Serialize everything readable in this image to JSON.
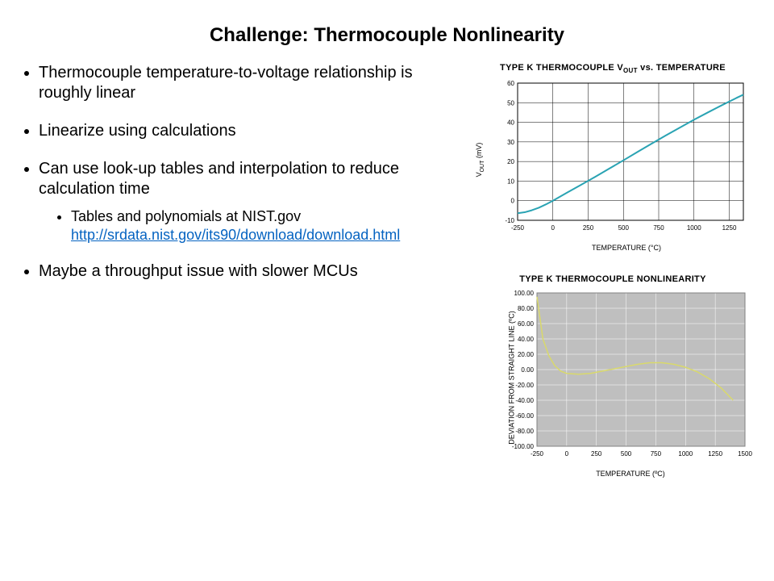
{
  "title": "Challenge: Thermocouple Nonlinearity",
  "bullets": {
    "b1": "Thermocouple temperature-to-voltage relationship is roughly linear",
    "b2": "Linearize using calculations",
    "b3": "Can use look-up tables and interpolation to reduce calculation time",
    "b3_sub1": "Tables and polynomials at NIST.gov",
    "b3_link": "http://srdata.nist.gov/its90/download/download.html",
    "b4": "Maybe a throughput issue with slower MCUs"
  },
  "chart1": {
    "type": "line",
    "title_pre": "TYPE K THERMOCOUPLE V",
    "title_sub": "OUT",
    "title_post": " vs. TEMPERATURE",
    "x_label": "TEMPERATURE (°C)",
    "y_label": "V_OUT (mV)",
    "y_label_pre": "V",
    "y_label_sub": "OUT",
    "y_label_post": " (mV)",
    "xlim": [
      -250,
      1350
    ],
    "ylim": [
      -10,
      60
    ],
    "x_ticks": [
      -250,
      0,
      250,
      500,
      750,
      1000,
      1250
    ],
    "y_ticks": [
      -10,
      0,
      10,
      20,
      30,
      40,
      50,
      60
    ],
    "line_color": "#2aa3b3",
    "line_width": 2,
    "grid_color": "#000000",
    "background_color": "#ffffff",
    "border_color": "#000000",
    "tick_fontsize": 8,
    "label_fontsize": 9,
    "data": {
      "x": [
        -250,
        -200,
        -150,
        -100,
        -50,
        0,
        100,
        200,
        300,
        400,
        500,
        600,
        700,
        800,
        900,
        1000,
        1100,
        1200,
        1300,
        1350
      ],
      "y": [
        -6.4,
        -5.9,
        -4.9,
        -3.6,
        -1.9,
        0,
        4.1,
        8.1,
        12.2,
        16.4,
        20.6,
        24.9,
        29.1,
        33.3,
        37.3,
        41.3,
        45.1,
        48.8,
        52.4,
        54.1
      ]
    }
  },
  "chart2": {
    "type": "line",
    "title": "TYPE K THERMOCOUPLE NONLINEARITY",
    "x_label": "TEMPERATURE (ºC)",
    "y_label": "DEVIATION FROM STRAIGHT LINE (ºC)",
    "xlim": [
      -250,
      1500
    ],
    "ylim": [
      -100,
      100
    ],
    "x_ticks": [
      -250,
      0,
      250,
      500,
      750,
      1000,
      1250,
      1500
    ],
    "y_ticks": [
      -100,
      -80,
      -60,
      -40,
      -20,
      0,
      20,
      40,
      60,
      80,
      100
    ],
    "y_tick_labels": [
      "-100.00",
      "-80.00",
      "-60.00",
      "-40.00",
      "-20.00",
      "0.00",
      "20.00",
      "40.00",
      "60.00",
      "80.00",
      "100.00"
    ],
    "line_color": "#d9d96b",
    "line_width": 1.5,
    "grid_color": "#ffffff",
    "background_color": "#bfbfbf",
    "border_color": "#808080",
    "tick_fontsize": 8,
    "label_fontsize": 8,
    "data": {
      "x": [
        -250,
        -200,
        -150,
        -100,
        -50,
        0,
        100,
        200,
        300,
        400,
        500,
        600,
        700,
        800,
        900,
        1000,
        1100,
        1200,
        1300,
        1350,
        1400
      ],
      "y": [
        95,
        40,
        18,
        5,
        -2,
        -5,
        -6,
        -5,
        -2,
        1,
        4,
        7,
        9,
        9,
        7,
        3,
        -3,
        -12,
        -24,
        -32,
        -40
      ]
    }
  }
}
